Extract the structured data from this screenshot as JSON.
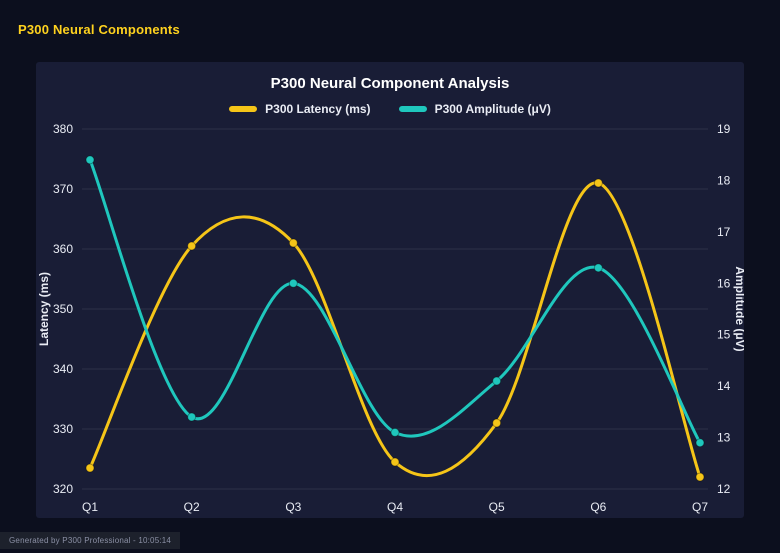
{
  "page": {
    "header": "P300 Neural Components",
    "footer": "Generated by P300 Professional - 10:05:14"
  },
  "chart_data": {
    "type": "line",
    "title": "P300 Neural Component Analysis",
    "categories": [
      "Q1",
      "Q2",
      "Q3",
      "Q4",
      "Q5",
      "Q6",
      "Q7"
    ],
    "series": [
      {
        "name": "P300 Latency (ms)",
        "axis": "left",
        "color": "#f5c518",
        "values": [
          323.5,
          360.5,
          361,
          324.5,
          331,
          371,
          322
        ]
      },
      {
        "name": "P300 Amplitude (μV)",
        "axis": "right",
        "color": "#1fc7bd",
        "values": [
          18.4,
          13.4,
          16,
          13.1,
          14.1,
          16.3,
          12.9
        ]
      }
    ],
    "left_axis": {
      "label": "Latency (ms)",
      "min": 320,
      "max": 380,
      "step": 10
    },
    "right_axis": {
      "label": "Amplitude (μV)",
      "min": 12,
      "max": 19,
      "step": 1
    },
    "grid": true,
    "smooth": true,
    "legend_position": "top"
  },
  "colors": {
    "background": "#0c0f1e",
    "panel": "#191d36",
    "header_text": "#ffd21e",
    "latency_line": "#f5c518",
    "amplitude_line": "#1fc7bd",
    "gridline": "rgba(255,255,255,0.09)",
    "axis_text": "#e9ecf4"
  }
}
